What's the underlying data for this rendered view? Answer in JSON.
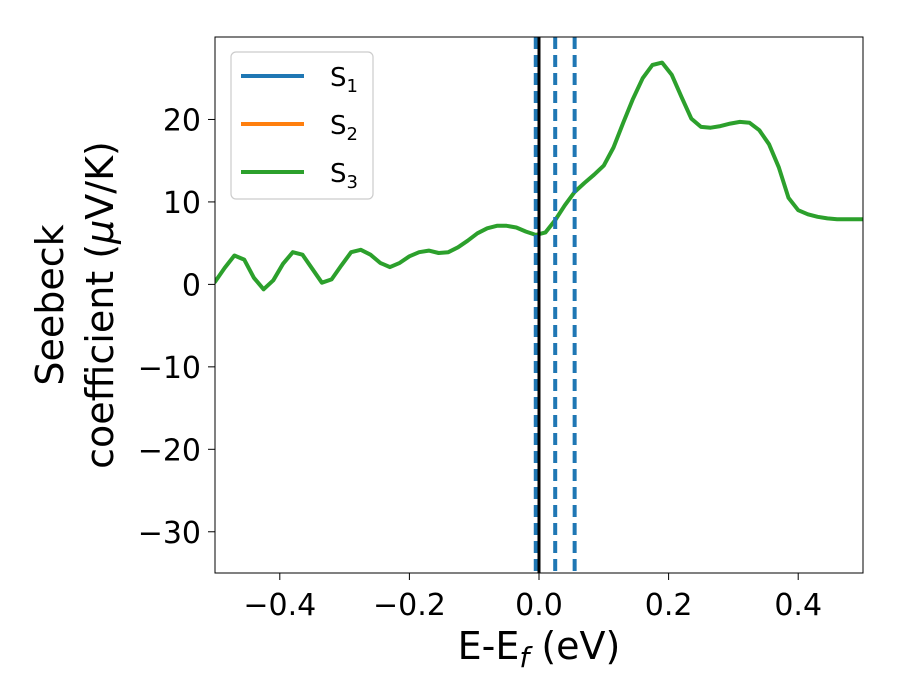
{
  "chart_data": {
    "type": "line",
    "xlabel": {
      "main": "E-E",
      "sub": "f",
      "suffix": " (eV)"
    },
    "ylabel": {
      "line1": "Seebeck",
      "line2_prefix": "coefficient  (",
      "line2_mu": "μ",
      "line2_suffix": "V/K)"
    },
    "xlim": [
      -0.5,
      0.5
    ],
    "ylim": [
      -35,
      30
    ],
    "xticks": [
      -0.4,
      -0.2,
      0.0,
      0.2,
      0.4
    ],
    "xtick_labels": [
      "−0.4",
      "−0.2",
      "0.0",
      "0.2",
      "0.4"
    ],
    "yticks": [
      -30,
      -20,
      -10,
      0,
      10,
      20
    ],
    "ytick_labels": [
      "−30",
      "−20",
      "−10",
      "0",
      "10",
      "20"
    ],
    "grid": false,
    "legend_position": "upper-left",
    "series": [
      {
        "name": "S",
        "sub": "1",
        "color": "#1f77b4",
        "x": [],
        "y": []
      },
      {
        "name": "S",
        "sub": "2",
        "color": "#ff7f0e",
        "x": [],
        "y": []
      },
      {
        "name": "S",
        "sub": "3",
        "color": "#2ca02c",
        "x": [
          -0.5,
          -0.485,
          -0.47,
          -0.455,
          -0.44,
          -0.425,
          -0.41,
          -0.395,
          -0.38,
          -0.365,
          -0.35,
          -0.335,
          -0.32,
          -0.305,
          -0.29,
          -0.275,
          -0.26,
          -0.245,
          -0.23,
          -0.215,
          -0.2,
          -0.185,
          -0.17,
          -0.155,
          -0.14,
          -0.125,
          -0.11,
          -0.095,
          -0.08,
          -0.065,
          -0.05,
          -0.035,
          -0.02,
          -0.005,
          0.01,
          0.025,
          0.04,
          0.055,
          0.07,
          0.085,
          0.1,
          0.115,
          0.13,
          0.145,
          0.16,
          0.175,
          0.19,
          0.205,
          0.22,
          0.235,
          0.25,
          0.265,
          0.28,
          0.295,
          0.31,
          0.325,
          0.34,
          0.355,
          0.37,
          0.385,
          0.4,
          0.415,
          0.43,
          0.445,
          0.46,
          0.475,
          0.49,
          0.5
        ],
        "y": [
          0.3,
          2.0,
          3.5,
          3.0,
          0.8,
          -0.6,
          0.5,
          2.5,
          3.9,
          3.6,
          1.9,
          0.2,
          0.6,
          2.3,
          3.9,
          4.2,
          3.6,
          2.6,
          2.1,
          2.6,
          3.4,
          3.9,
          4.1,
          3.8,
          3.9,
          4.5,
          5.3,
          6.2,
          6.8,
          7.1,
          7.1,
          6.9,
          6.4,
          6.0,
          6.3,
          7.8,
          9.6,
          11.2,
          12.3,
          13.3,
          14.4,
          16.6,
          19.6,
          22.5,
          25.0,
          26.6,
          26.9,
          25.4,
          22.7,
          20.1,
          19.1,
          19.0,
          19.2,
          19.5,
          19.7,
          19.6,
          18.7,
          17.0,
          14.2,
          10.5,
          9.0,
          8.5,
          8.2,
          8.0,
          7.9,
          7.9,
          7.9,
          7.9
        ]
      }
    ],
    "vlines": [
      {
        "x": -0.005,
        "style": "dashed",
        "color": "#1f77b4"
      },
      {
        "x": 0.025,
        "style": "dashed",
        "color": "#1f77b4"
      },
      {
        "x": 0.055,
        "style": "dashed",
        "color": "#1f77b4"
      },
      {
        "x": 0.0,
        "style": "solid",
        "color": "#000000"
      }
    ]
  }
}
